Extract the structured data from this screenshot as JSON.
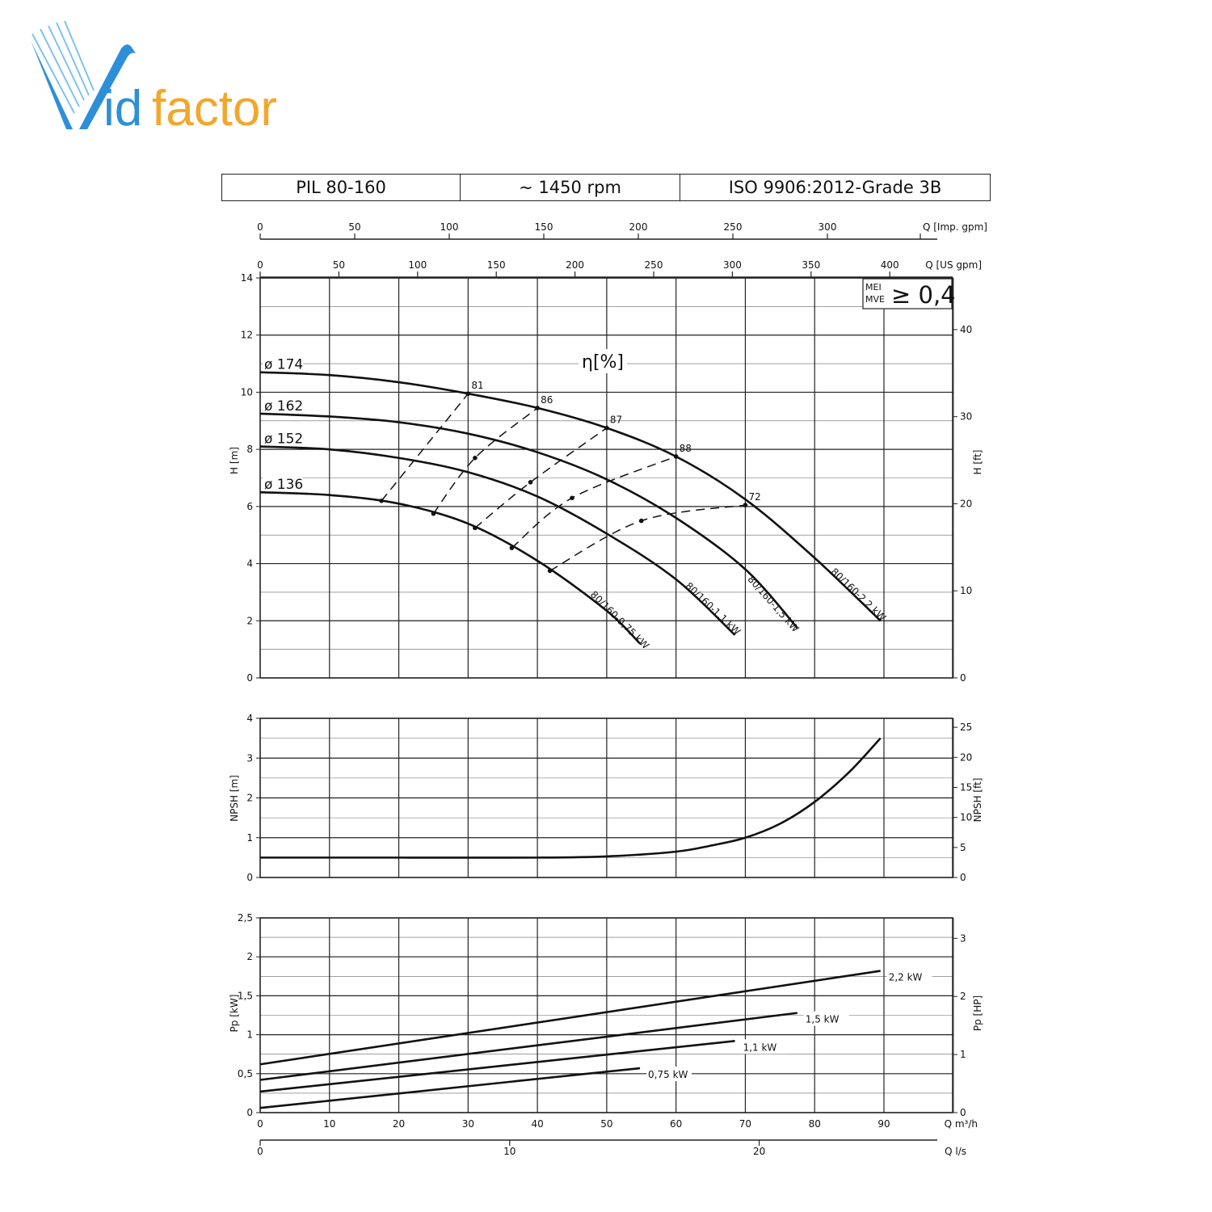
{
  "logo": {
    "text_blue": "V",
    "text_blue2": "id",
    "text_orange": "factor",
    "blue": "#2e8fd9",
    "orange": "#f2a72c"
  },
  "header": {
    "model": "PIL  80-160",
    "speed": "~ 1450 rpm",
    "standard": "ISO 9906:2012-Grade 3B"
  },
  "mei_box": {
    "label1": "MEI",
    "label2": "MVE",
    "value": "≥ 0,4"
  },
  "eta_label": "η[%]",
  "chart_data": [
    {
      "type": "line",
      "name": "head",
      "ylabel": "H [m]",
      "ylabel_right": "H [ft]",
      "xlim": [
        0,
        100
      ],
      "ylim": [
        0,
        14
      ],
      "ylim_right_ft": [
        0,
        45.93
      ],
      "x_ticks": [
        0,
        10,
        20,
        30,
        40,
        50,
        60,
        70,
        80,
        90
      ],
      "y_ticks": [
        0,
        2,
        4,
        6,
        8,
        10,
        12,
        14
      ],
      "y_ticks_right": [
        0,
        10,
        20,
        30,
        40
      ],
      "top_axes": [
        {
          "label": "Q [US gpm]",
          "ticks": [
            0,
            50,
            100,
            150,
            200,
            250,
            300,
            350,
            400
          ],
          "m3h_per_unit": 0.2271
        },
        {
          "label": "Q [Imp. gpm]",
          "ticks": [
            0,
            50,
            100,
            150,
            200,
            250,
            300
          ],
          "m3h_per_unit": 0.2728
        }
      ],
      "series": [
        {
          "name": "ø 174",
          "motor": "80/160-2,2 kW",
          "x": [
            0,
            10,
            20,
            30,
            40,
            50,
            60,
            70,
            80,
            89.5
          ],
          "y": [
            10.7,
            10.6,
            10.35,
            9.95,
            9.45,
            8.75,
            7.75,
            6.25,
            4.2,
            2.0
          ]
        },
        {
          "name": "ø 162",
          "motor": "80/160-1,5 kW",
          "x": [
            0,
            10,
            20,
            30,
            40,
            50,
            60,
            70,
            77.5
          ],
          "y": [
            9.25,
            9.15,
            8.95,
            8.55,
            7.9,
            6.95,
            5.6,
            3.8,
            1.75
          ]
        },
        {
          "name": "ø 152",
          "motor": "80/160-1,1 kW",
          "x": [
            0,
            10,
            20,
            30,
            40,
            50,
            60,
            68.5
          ],
          "y": [
            8.1,
            8.0,
            7.7,
            7.2,
            6.35,
            5.05,
            3.45,
            1.5
          ]
        },
        {
          "name": "ø 136",
          "motor": "80/160-0,75 kW",
          "x": [
            0,
            10,
            20,
            30,
            40,
            50,
            54.8
          ],
          "y": [
            6.5,
            6.4,
            6.1,
            5.4,
            4.1,
            2.35,
            1.2
          ]
        }
      ],
      "efficiency": [
        {
          "label": "81",
          "x": [
            17.5,
            30
          ],
          "y": [
            6.2,
            9.95
          ]
        },
        {
          "label": "86",
          "x": [
            25,
            31,
            40
          ],
          "y": [
            5.75,
            7.7,
            9.45
          ]
        },
        {
          "label": "87",
          "x": [
            31,
            39,
            50
          ],
          "y": [
            5.25,
            6.85,
            8.75
          ]
        },
        {
          "label": "88",
          "x": [
            36.3,
            45,
            60
          ],
          "y": [
            4.55,
            6.3,
            7.75
          ]
        },
        {
          "label": "72",
          "x": [
            41.8,
            55,
            70
          ],
          "y": [
            3.75,
            5.5,
            6.05
          ]
        }
      ]
    },
    {
      "type": "line",
      "name": "npsh",
      "ylabel": "NPSH [m]",
      "ylabel_right": "NPSH [ft]",
      "ylim": [
        0,
        4
      ],
      "y_ticks": [
        0,
        1,
        2,
        3,
        4
      ],
      "y_ticks_right": [
        0,
        5,
        10,
        15,
        20,
        25
      ],
      "x": [
        0,
        20,
        40,
        50,
        60,
        65,
        70,
        75,
        80,
        85,
        89.5
      ],
      "y": [
        0.5,
        0.5,
        0.5,
        0.53,
        0.65,
        0.8,
        1.0,
        1.35,
        1.9,
        2.65,
        3.5
      ]
    },
    {
      "type": "line",
      "name": "power",
      "ylabel": "Pp [kW]",
      "ylabel_right": "Pp [HP]",
      "xlabel": "Q m³/h",
      "xlabel_bottom": "Q l/s",
      "ylim": [
        0,
        2.5
      ],
      "y_ticks": [
        "0",
        "0,5",
        "1",
        "1,5",
        "2",
        "2,5"
      ],
      "y_ticks_right": [
        0,
        1,
        2,
        3
      ],
      "x_ticks_ls": [
        0,
        10,
        20
      ],
      "series": [
        {
          "name": "2,2 kW",
          "x": [
            0,
            89.5
          ],
          "y": [
            0.62,
            1.82
          ]
        },
        {
          "name": "1,5 kW",
          "x": [
            0,
            77.5
          ],
          "y": [
            0.42,
            1.28
          ]
        },
        {
          "name": "1,1 kW",
          "x": [
            0,
            68.5
          ],
          "y": [
            0.27,
            0.92
          ]
        },
        {
          "name": "0,75 kW",
          "x": [
            0,
            54.8
          ],
          "y": [
            0.06,
            0.57
          ]
        }
      ]
    }
  ]
}
